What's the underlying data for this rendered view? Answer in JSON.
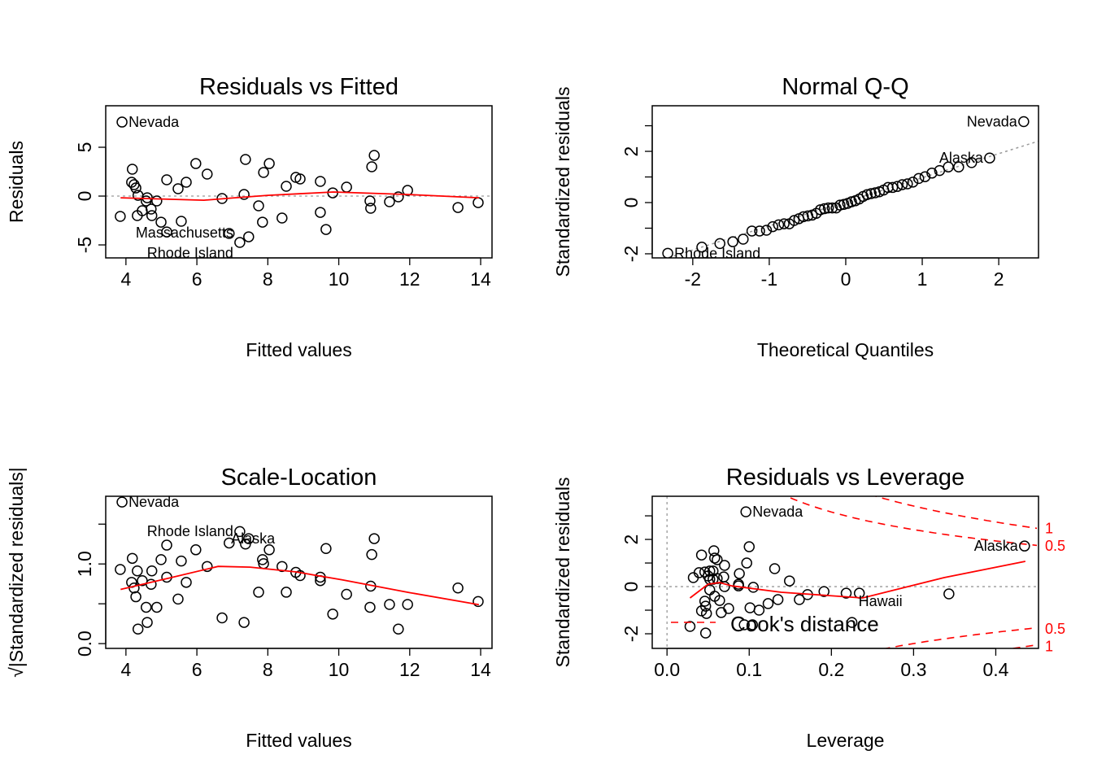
{
  "chart_data": [
    {
      "id": "residuals-vs-fitted",
      "type": "scatter",
      "title": "Residuals vs Fitted",
      "xlabel": "Fitted values",
      "ylabel": "Residuals",
      "xlim": [
        3.43,
        14.32
      ],
      "ylim": [
        -6.33,
        9.25
      ],
      "xticks": [
        4,
        6,
        8,
        10,
        12,
        14
      ],
      "yticks": [
        -5,
        0,
        5
      ],
      "ytick_labels": [
        "-5",
        "0",
        "5"
      ],
      "hline": 0,
      "points": [
        [
          3.84,
          -2.08
        ],
        [
          4.18,
          2.75
        ],
        [
          4.16,
          1.42
        ],
        [
          4.23,
          1.17
        ],
        [
          4.28,
          0.83
        ],
        [
          4.34,
          0.08
        ],
        [
          4.32,
          -2.0
        ],
        [
          4.46,
          -1.5
        ],
        [
          4.6,
          -0.17
        ],
        [
          4.57,
          -0.5
        ],
        [
          4.71,
          -1.33
        ],
        [
          4.73,
          -2.0
        ],
        [
          4.87,
          -0.5
        ],
        [
          4.99,
          -2.67
        ],
        [
          5.15,
          -3.67
        ],
        [
          5.15,
          1.67
        ],
        [
          5.47,
          0.75
        ],
        [
          5.56,
          -2.58
        ],
        [
          5.7,
          1.42
        ],
        [
          5.97,
          3.33
        ],
        [
          6.29,
          2.25
        ],
        [
          6.71,
          -0.25
        ],
        [
          6.91,
          -3.83
        ],
        [
          7.21,
          -4.75
        ],
        [
          7.33,
          0.17
        ],
        [
          7.37,
          3.75
        ],
        [
          7.46,
          -4.17
        ],
        [
          7.74,
          -1.0
        ],
        [
          7.85,
          -2.67
        ],
        [
          7.88,
          2.42
        ],
        [
          8.04,
          3.33
        ],
        [
          8.4,
          -2.25
        ],
        [
          8.52,
          1.0
        ],
        [
          8.79,
          1.92
        ],
        [
          8.91,
          1.75
        ],
        [
          9.48,
          1.5
        ],
        [
          9.48,
          -1.67
        ],
        [
          9.64,
          -3.42
        ],
        [
          9.83,
          0.33
        ],
        [
          10.22,
          0.92
        ],
        [
          10.88,
          -0.5
        ],
        [
          10.9,
          -1.25
        ],
        [
          10.93,
          3.0
        ],
        [
          11.0,
          4.17
        ],
        [
          11.43,
          -0.58
        ],
        [
          11.68,
          -0.08
        ],
        [
          11.94,
          0.58
        ],
        [
          13.36,
          -1.17
        ],
        [
          13.93,
          -0.67
        ],
        [
          3.89,
          7.58
        ]
      ],
      "smooth": [
        [
          3.85,
          -0.17
        ],
        [
          5.0,
          -0.3
        ],
        [
          6.2,
          -0.42
        ],
        [
          7.0,
          -0.2
        ],
        [
          8.0,
          0.08
        ],
        [
          9.85,
          0.42
        ],
        [
          11.9,
          0.17
        ],
        [
          13.95,
          -0.17
        ]
      ],
      "annotations": [
        {
          "text": "Nevada",
          "x": 3.89,
          "y": 7.58,
          "pos": "right"
        },
        {
          "text": "Massachusetts",
          "x": 7.21,
          "y": -4.6,
          "pos": "left"
        },
        {
          "text": "Rhode Island",
          "x": 7.21,
          "y": -5.15,
          "pos": "left"
        }
      ]
    },
    {
      "id": "normal-qq",
      "type": "scatter",
      "title": "Normal Q-Q",
      "xlabel": "Theoretical Quantiles",
      "ylabel": "Standardized residuals",
      "xlim": [
        -2.53,
        2.52
      ],
      "ylim": [
        -2.16,
        3.78
      ],
      "xticks": [
        -2,
        -1,
        0,
        1,
        2
      ],
      "yticks": [
        -2,
        -1,
        0,
        1,
        2,
        3
      ],
      "ytick_labels": [
        "-2",
        "",
        "0",
        "",
        "2",
        ""
      ],
      "sample": [
        -1.98,
        -1.74,
        -1.6,
        -1.53,
        -1.43,
        -1.11,
        -1.11,
        -1.08,
        -0.94,
        -0.87,
        -0.83,
        -0.83,
        -0.7,
        -0.63,
        -0.55,
        -0.52,
        -0.49,
        -0.42,
        -0.28,
        -0.24,
        -0.21,
        -0.21,
        -0.21,
        -0.1,
        -0.07,
        -0.03,
        0.03,
        0.07,
        0.14,
        0.24,
        0.31,
        0.35,
        0.38,
        0.42,
        0.49,
        0.59,
        0.59,
        0.63,
        0.7,
        0.73,
        0.8,
        0.94,
        1.01,
        1.15,
        1.25,
        1.39,
        1.39,
        1.56,
        1.74,
        3.16
      ],
      "ref_line": {
        "intercept": 0.03,
        "slope": 0.94
      },
      "annotations": [
        {
          "text": "Nevada",
          "index": 49,
          "pos": "left"
        },
        {
          "text": "Alaska",
          "index": 48,
          "pos": "left"
        },
        {
          "text": "Rhode Island",
          "index": 0,
          "pos": "right"
        }
      ]
    },
    {
      "id": "scale-location",
      "type": "scatter",
      "title": "Scale-Location",
      "xlabel": "Fitted values",
      "ylabel": "√|Standardized residuals|",
      "xlim": [
        3.43,
        14.32
      ],
      "ylim": [
        -0.06,
        1.85
      ],
      "xticks": [
        4,
        6,
        8,
        10,
        12,
        14
      ],
      "yticks": [
        0,
        0.5,
        1.0,
        1.5
      ],
      "ytick_labels": [
        "0.0",
        "",
        "1.0",
        ""
      ],
      "residual_scale": 2.4,
      "smooth": [
        [
          3.85,
          0.68
        ],
        [
          5.2,
          0.82
        ],
        [
          6.6,
          0.97
        ],
        [
          7.5,
          0.96
        ],
        [
          8.8,
          0.9
        ],
        [
          10.1,
          0.8
        ],
        [
          12.0,
          0.64
        ],
        [
          13.95,
          0.49
        ]
      ],
      "annotations": [
        {
          "text": "Nevada",
          "x": 3.89,
          "y": 1.78,
          "pos": "right"
        },
        {
          "text": "Rhode Island",
          "x": 7.21,
          "y": 1.41,
          "pos": "left"
        },
        {
          "text": "Alaska",
          "x": 6.0,
          "y": 1.32,
          "pos": "right"
        }
      ]
    },
    {
      "id": "residuals-vs-leverage",
      "type": "scatter",
      "title": "Residuals vs Leverage",
      "xlabel": "Leverage",
      "ylabel": "Standardized residuals",
      "xlim": [
        -0.018,
        0.452
      ],
      "ylim": [
        -2.62,
        3.83
      ],
      "xticks": [
        0.0,
        0.1,
        0.2,
        0.3,
        0.4
      ],
      "xtick_labels": [
        "0.0",
        "0.1",
        "0.2",
        "0.3",
        "0.4"
      ],
      "yticks": [
        -2,
        -1,
        0,
        1,
        2,
        3
      ],
      "ytick_labels": [
        "-2",
        "",
        "0",
        "",
        "2",
        ""
      ],
      "n_params": 5,
      "cooks_levels": [
        0.5,
        1
      ],
      "cooks_level_labels": [
        "0.5",
        "1"
      ],
      "legend": "Cook's distance",
      "points": [
        [
          0.096,
          3.17
        ],
        [
          0.435,
          1.72
        ],
        [
          0.1,
          1.69
        ],
        [
          0.057,
          1.52
        ],
        [
          0.042,
          1.34
        ],
        [
          0.058,
          1.21
        ],
        [
          0.061,
          1.14
        ],
        [
          0.07,
          0.9
        ],
        [
          0.097,
          1.0
        ],
        [
          0.131,
          0.76
        ],
        [
          0.088,
          0.55
        ],
        [
          0.032,
          0.38
        ],
        [
          0.039,
          0.59
        ],
        [
          0.046,
          0.62
        ],
        [
          0.052,
          0.66
        ],
        [
          0.056,
          0.66
        ],
        [
          0.069,
          0.41
        ],
        [
          0.052,
          0.31
        ],
        [
          0.056,
          0.31
        ],
        [
          0.149,
          0.24
        ],
        [
          0.087,
          0.1
        ],
        [
          0.07,
          0.0
        ],
        [
          0.105,
          -0.03
        ],
        [
          0.052,
          -0.14
        ],
        [
          0.171,
          -0.34
        ],
        [
          0.191,
          -0.21
        ],
        [
          0.218,
          -0.28
        ],
        [
          0.234,
          -0.28
        ],
        [
          0.343,
          -0.31
        ],
        [
          0.058,
          -0.41
        ],
        [
          0.064,
          -0.59
        ],
        [
          0.046,
          -0.62
        ],
        [
          0.047,
          -0.83
        ],
        [
          0.075,
          -0.93
        ],
        [
          0.101,
          -0.9
        ],
        [
          0.112,
          -1.0
        ],
        [
          0.123,
          -0.72
        ],
        [
          0.135,
          -0.55
        ],
        [
          0.161,
          -0.55
        ],
        [
          0.042,
          -1.03
        ],
        [
          0.048,
          -1.14
        ],
        [
          0.066,
          -1.1
        ],
        [
          0.028,
          -1.69
        ],
        [
          0.047,
          -1.97
        ],
        [
          0.094,
          -1.62
        ],
        [
          0.104,
          -1.62
        ],
        [
          0.225,
          -1.52
        ],
        [
          0.05,
          0.45
        ],
        [
          0.061,
          0.34
        ],
        [
          0.087,
          0.03
        ]
      ],
      "smooth": [
        [
          0.028,
          -0.48
        ],
        [
          0.05,
          0.1
        ],
        [
          0.064,
          0.17
        ],
        [
          0.079,
          0.03
        ],
        [
          0.139,
          -0.24
        ],
        [
          0.238,
          -0.48
        ],
        [
          0.337,
          0.38
        ],
        [
          0.436,
          1.07
        ]
      ],
      "annotations": [
        {
          "text": "Nevada",
          "x": 0.096,
          "y": 3.17,
          "pos": "right"
        },
        {
          "text": "Alaska",
          "x": 0.435,
          "y": 1.72,
          "pos": "left"
        },
        {
          "text": "Hawaii",
          "x": 0.225,
          "y": -1.52,
          "pos": "right"
        }
      ]
    }
  ],
  "colors": {
    "points": "#000000",
    "smooth": "#ff0000",
    "reference": "#999999"
  }
}
